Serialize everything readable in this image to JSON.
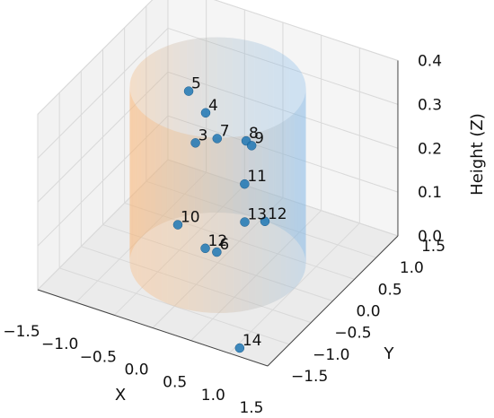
{
  "chart_data": {
    "type": "scatter",
    "projection": "3d",
    "axes": {
      "x": {
        "label": "X",
        "range": [
          -1.5,
          1.5
        ],
        "ticks": [
          "−1.5",
          "−1.0",
          "−0.5",
          "0.0",
          "0.5",
          "1.0",
          "1.5"
        ]
      },
      "y": {
        "label": "Y",
        "range": [
          -1.5,
          1.5
        ],
        "ticks": [
          "−1.5",
          "−1.0",
          "−0.5",
          "0.0",
          "0.5",
          "1.0",
          "1.5"
        ]
      },
      "z": {
        "label": "Height (Z)",
        "range": [
          0.0,
          0.4
        ],
        "ticks": [
          "0.0",
          "0.1",
          "0.2",
          "0.3",
          "0.4"
        ]
      }
    },
    "grid": true,
    "cylinder": {
      "radius": 1.0,
      "z_range": [
        0.0,
        0.4
      ],
      "colors": [
        "#ffb26a",
        "#7fb8ea"
      ]
    },
    "marker_color": "#1f77b4",
    "points": [
      {
        "label": "5",
        "x": -0.55,
        "y": 0.3,
        "z": 0.33
      },
      {
        "label": "4",
        "x": -0.3,
        "y": 0.25,
        "z": 0.3
      },
      {
        "label": "3",
        "x": -0.32,
        "y": 0.05,
        "z": 0.25
      },
      {
        "label": "7",
        "x": -0.15,
        "y": 0.25,
        "z": 0.25
      },
      {
        "label": "8",
        "x": 0.2,
        "y": 0.3,
        "z": 0.26
      },
      {
        "label": "9",
        "x": 0.3,
        "y": 0.25,
        "z": 0.26
      },
      {
        "label": "11",
        "x": 0.35,
        "y": 0.0,
        "z": 0.2
      },
      {
        "label": "12",
        "x": 0.7,
        "y": -0.15,
        "z": 0.15
      },
      {
        "label": "13",
        "x": 0.38,
        "y": -0.05,
        "z": 0.12
      },
      {
        "label": "10",
        "x": -0.55,
        "y": 0.05,
        "z": 0.05
      },
      {
        "label": "12",
        "x": -0.05,
        "y": -0.2,
        "z": 0.05
      },
      {
        "label": "6",
        "x": 0.1,
        "y": -0.2,
        "z": 0.05
      },
      {
        "label": "14",
        "x": 1.05,
        "y": -1.35,
        "z": 0.0
      }
    ]
  }
}
